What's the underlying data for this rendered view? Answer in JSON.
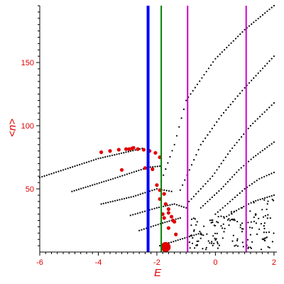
{
  "chart_data": {
    "type": "scatter",
    "title": "",
    "xlabel": "E",
    "ylabel": "<n>",
    "xlim": [
      -6,
      2.1
    ],
    "ylim": [
      0,
      195
    ],
    "x_ticks": [
      -6,
      -4,
      -2,
      0,
      2
    ],
    "y_ticks": [
      50,
      100,
      150
    ],
    "grid": false,
    "colors": {
      "axis": "#000000",
      "labels": "#e00000",
      "points": "#000000",
      "highlight": "#e00000"
    },
    "vertical_lines": [
      {
        "x": -2.3,
        "color": "#0000ff",
        "width": "thick"
      },
      {
        "x": -1.85,
        "color": "#008000",
        "width": "normal"
      },
      {
        "x": -0.95,
        "color": "#cc00cc",
        "width": "normal"
      },
      {
        "x": 1.05,
        "color": "#cc00cc",
        "width": "normal"
      }
    ],
    "series": [
      {
        "values": [
          [
            -6.0,
            59
          ],
          [
            -4.0,
            74
          ],
          [
            -2.5,
            82
          ]
        ]
      },
      {
        "values": [
          [
            -4.9,
            48
          ],
          [
            -3.5,
            58
          ],
          [
            -2.3,
            67
          ],
          [
            -1.9,
            68
          ]
        ]
      },
      {
        "values": [
          [
            -3.9,
            38
          ],
          [
            -2.8,
            44
          ],
          [
            -2.0,
            50
          ],
          [
            -1.5,
            48
          ]
        ]
      },
      {
        "values": [
          [
            -2.9,
            29
          ],
          [
            -2.0,
            35
          ],
          [
            -1.4,
            38
          ],
          [
            -1.0,
            35
          ]
        ]
      },
      {
        "values": [
          [
            -2.6,
            17
          ],
          [
            -1.8,
            23
          ],
          [
            -1.2,
            27
          ]
        ]
      },
      {
        "values": [
          [
            -1.9,
            5
          ],
          [
            -1.2,
            10
          ],
          [
            -0.5,
            15
          ]
        ]
      },
      {
        "values": [
          [
            -1.85,
            56
          ],
          [
            -1.4,
            85
          ],
          [
            -1.0,
            120
          ],
          [
            0.0,
            153
          ],
          [
            1.0,
            176
          ],
          [
            2.0,
            195
          ]
        ]
      },
      {
        "values": [
          [
            -1.2,
            49
          ],
          [
            -0.5,
            85
          ],
          [
            0.2,
            108
          ],
          [
            1.0,
            130
          ],
          [
            2.0,
            155
          ]
        ]
      },
      {
        "values": [
          [
            -0.9,
            40
          ],
          [
            -0.1,
            60
          ],
          [
            0.5,
            80
          ],
          [
            1.2,
            100
          ],
          [
            2.0,
            118
          ]
        ]
      },
      {
        "values": [
          [
            -0.5,
            35
          ],
          [
            0.2,
            50
          ],
          [
            0.8,
            65
          ],
          [
            1.3,
            75
          ],
          [
            2.0,
            87
          ]
        ]
      },
      {
        "values": [
          [
            0.0,
            30
          ],
          [
            0.5,
            40
          ],
          [
            1.0,
            50
          ],
          [
            1.5,
            58
          ],
          [
            2.0,
            63
          ]
        ]
      },
      {
        "values": [
          [
            0.3,
            27
          ],
          [
            0.8,
            34
          ],
          [
            1.3,
            40
          ],
          [
            2.0,
            45
          ]
        ]
      }
    ],
    "highlight_points": [
      [
        -3.9,
        79
      ],
      [
        -3.6,
        80
      ],
      [
        -3.3,
        81
      ],
      [
        -3.05,
        81.5
      ],
      [
        -2.85,
        82
      ],
      [
        -2.65,
        81.5
      ],
      [
        -2.45,
        81
      ],
      [
        -2.25,
        80
      ],
      [
        -2.05,
        78.5
      ],
      [
        -1.9,
        75
      ],
      [
        -2.95,
        81.5
      ],
      [
        -2.8,
        82.5
      ],
      [
        -3.2,
        65
      ],
      [
        -2.4,
        66.5
      ],
      [
        -2.15,
        65.5
      ],
      [
        -2.0,
        53
      ],
      [
        -1.9,
        49
      ],
      [
        -1.75,
        46
      ],
      [
        -1.9,
        42
      ],
      [
        -1.7,
        38
      ],
      [
        -1.6,
        34
      ],
      [
        -1.6,
        31
      ],
      [
        -1.5,
        28
      ],
      [
        -1.8,
        30
      ],
      [
        -1.45,
        25
      ],
      [
        -1.6,
        19
      ],
      [
        -1.35,
        14
      ],
      [
        -1.4,
        24
      ],
      [
        -1.75,
        27
      ],
      [
        -1.8,
        4
      ],
      [
        -1.7,
        6
      ],
      [
        -1.6,
        3
      ],
      [
        -1.75,
        2
      ],
      [
        -1.65,
        5
      ]
    ]
  }
}
